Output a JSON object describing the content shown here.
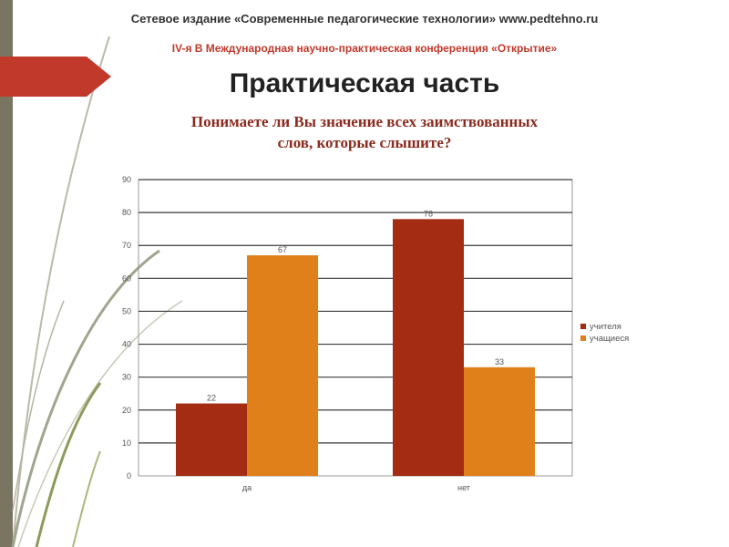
{
  "header": {
    "publisher": "Сетевое издание «Современные педагогические технологии» www.pedtehno.ru",
    "conference": "IV-я В Международная научно-практическая конференция «Открытие»"
  },
  "slide": {
    "title": "Практическая часть"
  },
  "colors": {
    "accent_red": "#c0392b",
    "left_bar": "#7a7560",
    "teachers": "#a32c12",
    "students": "#e0801a"
  },
  "chart_data": {
    "type": "bar",
    "title": "Понимаете ли Вы значение всех заимствованных слов, которые слышите?",
    "categories": [
      "да",
      "нет"
    ],
    "series": [
      {
        "name": "учителя",
        "values": [
          22,
          78
        ]
      },
      {
        "name": "учащиеся",
        "values": [
          67,
          33
        ]
      }
    ],
    "ylim": [
      0,
      90
    ],
    "yticks": [
      0,
      10,
      20,
      30,
      40,
      50,
      60,
      70,
      80,
      90
    ],
    "grid": true,
    "legend": "right"
  }
}
